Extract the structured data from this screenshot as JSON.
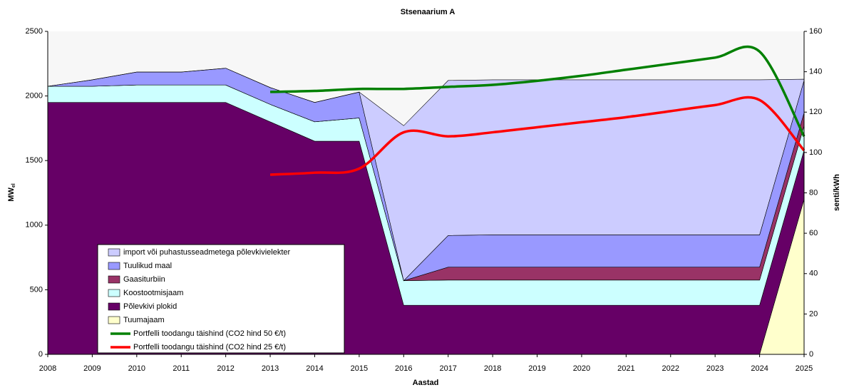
{
  "chart_data": {
    "type": "area",
    "title": "Stsenaarium A",
    "x_label": "Aastad",
    "y_label": "MW",
    "y_label_sub": "el",
    "y2_label": "senti/kWh",
    "x": [
      2008,
      2009,
      2010,
      2011,
      2012,
      2013,
      2014,
      2015,
      2016,
      2017,
      2018,
      2019,
      2020,
      2021,
      2022,
      2023,
      2024,
      2025
    ],
    "xlim": [
      2008,
      2025
    ],
    "xticks": [
      2008,
      2009,
      2010,
      2011,
      2012,
      2013,
      2014,
      2015,
      2016,
      2017,
      2018,
      2019,
      2020,
      2021,
      2022,
      2023,
      2024,
      2025
    ],
    "ylim": [
      0,
      2500
    ],
    "yticks": [
      0,
      500,
      1000,
      1500,
      2000,
      2500
    ],
    "y2lim": [
      0,
      160
    ],
    "y2ticks": [
      0,
      20,
      40,
      60,
      80,
      100,
      120,
      140,
      160
    ],
    "legend": "lower left",
    "series": [
      {
        "name": "import või puhastusseadmetega põlevkivielekter",
        "type": "area",
        "color": "#ccccff",
        "values": [
          0,
          0,
          0,
          0,
          0,
          0,
          0,
          0,
          1200,
          1200,
          1200,
          1200,
          1200,
          1200,
          1200,
          1200,
          1200,
          10
        ]
      },
      {
        "name": "Tuulikud maal",
        "type": "area",
        "color": "#9999ff",
        "values": [
          0,
          50,
          100,
          100,
          130,
          130,
          150,
          200,
          0,
          245,
          250,
          250,
          250,
          250,
          250,
          250,
          250,
          250
        ]
      },
      {
        "name": "Gaasiturbiin",
        "type": "area",
        "color": "#993366",
        "values": [
          0,
          0,
          0,
          0,
          0,
          0,
          0,
          0,
          0,
          100,
          100,
          100,
          100,
          100,
          100,
          100,
          100,
          100
        ]
      },
      {
        "name": "Koostootmisjaam",
        "type": "area",
        "color": "#ccffff",
        "values": [
          125,
          125,
          135,
          135,
          135,
          135,
          150,
          180,
          190,
          195,
          195,
          195,
          195,
          195,
          195,
          195,
          195,
          190
        ]
      },
      {
        "name": "Põlevkivi plokid",
        "type": "area",
        "color": "#660066",
        "values": [
          1950,
          1950,
          1950,
          1950,
          1950,
          1800,
          1650,
          1650,
          380,
          380,
          380,
          380,
          380,
          380,
          380,
          380,
          380,
          380
        ]
      },
      {
        "name": "Tuumajaam",
        "type": "area",
        "color": "#ffffcc",
        "values": [
          0,
          0,
          0,
          0,
          0,
          0,
          0,
          0,
          0,
          0,
          0,
          0,
          0,
          0,
          0,
          0,
          0,
          1200
        ]
      },
      {
        "name": "Portfelli toodangu täishind (CO2 hind 50 €/t)",
        "type": "line",
        "axis": "y2",
        "color": "#008000",
        "values": [
          null,
          null,
          null,
          null,
          null,
          130,
          130.5,
          131.5,
          131.5,
          132.5,
          133.5,
          135.5,
          138,
          141,
          144,
          147,
          150,
          108
        ]
      },
      {
        "name": "Portfelli toodangu täishind (CO2 hind 25 €/t)",
        "type": "line",
        "axis": "y2",
        "color": "#ff0000",
        "values": [
          null,
          null,
          null,
          null,
          null,
          89,
          90,
          92,
          110,
          108,
          110,
          112.5,
          115,
          117.5,
          120.5,
          123.5,
          126,
          101
        ]
      }
    ]
  }
}
